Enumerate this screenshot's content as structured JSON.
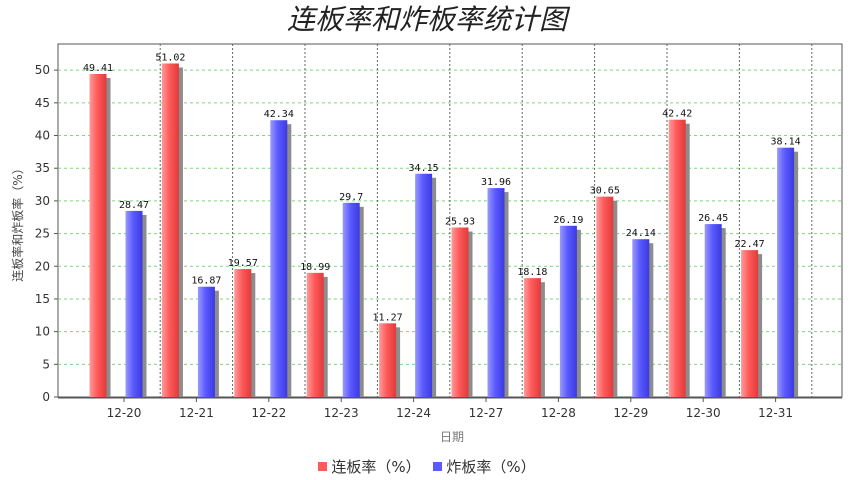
{
  "chart_data": {
    "type": "bar",
    "title": "连板率和炸板率统计图",
    "xlabel": "日期",
    "ylabel": "连板率和炸板率（%）",
    "categories": [
      "12-20",
      "12-21",
      "12-22",
      "12-23",
      "12-24",
      "12-27",
      "12-28",
      "12-29",
      "12-30",
      "12-31"
    ],
    "series": [
      {
        "name": "连板率（%）",
        "color": "#ff5a5a",
        "values": [
          49.41,
          51.02,
          19.57,
          18.99,
          11.27,
          25.93,
          18.18,
          30.65,
          42.42,
          22.47
        ]
      },
      {
        "name": "炸板率（%）",
        "color": "#5a5aff",
        "values": [
          28.47,
          16.87,
          42.34,
          29.7,
          34.15,
          31.96,
          26.19,
          24.14,
          26.45,
          38.14
        ]
      }
    ],
    "ylim": [
      0,
      54
    ],
    "yticks": [
      0,
      5,
      10,
      15,
      20,
      25,
      30,
      35,
      40,
      45,
      50
    ],
    "grid": true,
    "legend_position": "bottom"
  }
}
